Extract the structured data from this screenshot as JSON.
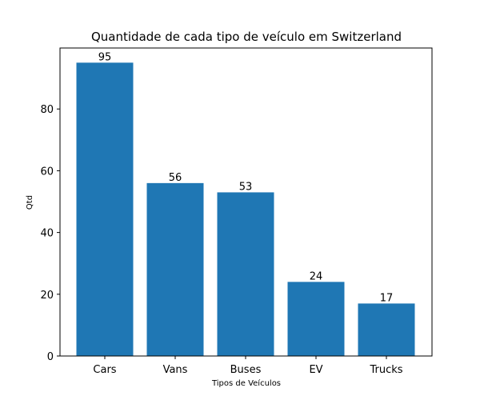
{
  "chart_data": {
    "type": "bar",
    "title": "Quantidade de cada tipo de veículo em Switzerland",
    "xlabel": "Tipos de Veículos",
    "ylabel": "Qtd",
    "categories": [
      "Cars",
      "Vans",
      "Buses",
      "EV",
      "Trucks"
    ],
    "values": [
      95,
      56,
      53,
      24,
      17
    ],
    "data_labels": [
      "95",
      "56",
      "53",
      "24",
      "17"
    ],
    "ylim": [
      0,
      99.75
    ],
    "yticks": [
      0,
      20,
      40,
      60,
      80
    ],
    "ytick_labels": [
      "0",
      "20",
      "40",
      "60",
      "80"
    ],
    "grid": false,
    "bar_color": "#1f77b4"
  }
}
